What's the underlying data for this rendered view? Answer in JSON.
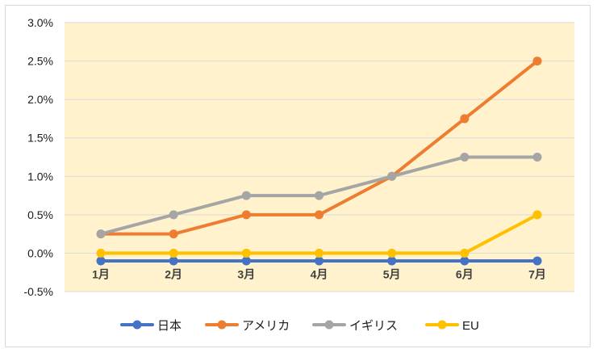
{
  "chart_data": {
    "type": "line",
    "categories": [
      "1月",
      "2月",
      "3月",
      "4月",
      "5月",
      "6月",
      "7月"
    ],
    "series": [
      {
        "name": "日本",
        "color": "#4472c4",
        "values": [
          -0.1,
          -0.1,
          -0.1,
          -0.1,
          -0.1,
          -0.1,
          -0.1
        ]
      },
      {
        "name": "アメリカ",
        "color": "#ed7d31",
        "values": [
          0.25,
          0.25,
          0.5,
          0.5,
          1.0,
          1.75,
          2.5
        ]
      },
      {
        "name": "イギリス",
        "color": "#a5a5a5",
        "values": [
          0.25,
          0.5,
          0.75,
          0.75,
          1.0,
          1.25,
          1.25
        ]
      },
      {
        "name": "EU",
        "color": "#ffc000",
        "values": [
          0.0,
          0.0,
          0.0,
          0.0,
          0.0,
          0.0,
          0.5
        ]
      }
    ],
    "y_ticks": [
      "3.0%",
      "2.5%",
      "2.0%",
      "1.5%",
      "1.0%",
      "0.5%",
      "0.0%",
      "-0.5%"
    ],
    "ylim": [
      -0.5,
      3.0
    ],
    "y_unit": "%",
    "grid": true,
    "plot_background": "#fff2cc",
    "legend_position": "bottom"
  }
}
